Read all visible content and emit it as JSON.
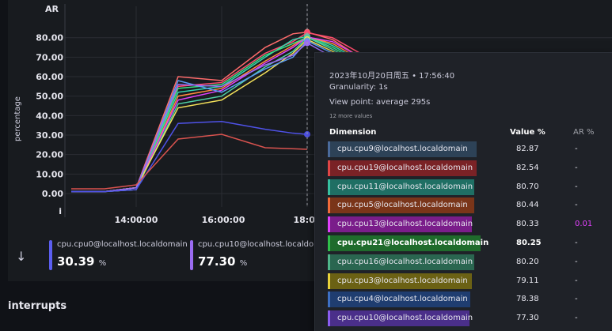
{
  "chart": {
    "y_axis_label": "percentage",
    "top_label": "AR",
    "bottom_label": "i",
    "y_ticks": [
      "80.00",
      "70.00",
      "60.00",
      "50.00",
      "40.00",
      "30.00",
      "20.00",
      "10.00",
      "0.00"
    ],
    "x_ticks": [
      "14:00:00",
      "16:00:00",
      "18:00"
    ]
  },
  "chart_data": {
    "type": "line",
    "ylabel": "percentage",
    "ylim": [
      0,
      88
    ],
    "x": [
      "13:00",
      "13:30",
      "14:00",
      "14:50",
      "15:50",
      "16:50",
      "17:40",
      "18:00",
      "18:40",
      "19:20"
    ],
    "series": [
      {
        "name": "cpu.cpu9@localhost.localdomain",
        "color": "#ff6b6b",
        "values": [
          1,
          1,
          3,
          60,
          58,
          75,
          82,
          82.87,
          79,
          70
        ]
      },
      {
        "name": "cpu.cpu19@localhost.localdomain",
        "color": "#ff4d6d",
        "values": [
          1,
          1,
          3,
          55,
          57,
          72,
          78,
          82.54,
          80,
          72
        ]
      },
      {
        "name": "cpu.cpu11@localhost.localdomain",
        "color": "#36d6b0",
        "values": [
          1,
          1,
          3,
          52,
          55,
          70,
          79,
          80.7,
          76,
          68
        ]
      },
      {
        "name": "cpu.cpu5@localhost.localdomain",
        "color": "#ff8a3d",
        "values": [
          1,
          1,
          2,
          50,
          54,
          68,
          76,
          80.44,
          77,
          69
        ]
      },
      {
        "name": "cpu.cpu13@localhost.localdomain",
        "color": "#e040fb",
        "values": [
          1,
          1,
          3,
          48,
          53,
          67,
          75,
          80.33,
          78,
          70
        ]
      },
      {
        "name": "cpu.cpu21@localhost.localdomain",
        "color": "#3ddc84",
        "values": [
          1,
          1,
          3,
          54,
          56,
          71,
          77,
          80.25,
          75,
          67
        ]
      },
      {
        "name": "cpu.cpu16@localhost.localdomain",
        "color": "#4fd1a5",
        "values": [
          1,
          1,
          2,
          46,
          50,
          65,
          73,
          80.2,
          74,
          66
        ]
      },
      {
        "name": "cpu.cpu3@localhost.localdomain",
        "color": "#f2e05a",
        "values": [
          1,
          1,
          3,
          44,
          48,
          62,
          72,
          79.11,
          73,
          65
        ]
      },
      {
        "name": "cpu.cpu4@localhost.localdomain",
        "color": "#5a9bf2",
        "values": [
          1,
          1,
          2,
          58,
          52,
          64,
          70,
          78.38,
          72,
          66
        ]
      },
      {
        "name": "cpu.cpu10@localhost.localdomain",
        "color": "#9b6cf2",
        "values": [
          1,
          1,
          3,
          56,
          55,
          66,
          71,
          77.3,
          70,
          64
        ]
      },
      {
        "name": "cpu.cpu0@localhost.localdomain",
        "color": "#4f52e8",
        "values": [
          1,
          1,
          2,
          36,
          37,
          33,
          31,
          30.39,
          0,
          0
        ]
      }
    ]
  },
  "stats": {
    "items": [
      {
        "name": "cpu.cpu0@localhost.localdomain",
        "value": "30.39",
        "unit": "%",
        "color": "#5b5ef0"
      },
      {
        "name": "cpu.cpu10@localhost.localdo",
        "value": "77.30",
        "unit": "%",
        "color": "#9b6cf2"
      }
    ]
  },
  "section": {
    "title": "interrupts"
  },
  "tooltip": {
    "date": "2023年10月20日周五 • 17:56:40",
    "granularity": "Granularity: 1s",
    "view_point": "View point: average 295s",
    "more": "12 more values",
    "headers": {
      "dimension": "Dimension",
      "value": "Value %",
      "ar": "AR %"
    },
    "rows": [
      {
        "name": "cpu.cpu9@localhost.localdomain",
        "value": "82.87",
        "ar": "-",
        "color": "#4a6a9a",
        "bg": "#2d4257"
      },
      {
        "name": "cpu.cpu19@localhost.localdomain",
        "value": "82.54",
        "ar": "-",
        "color": "#e04545",
        "bg": "#7a2226"
      },
      {
        "name": "cpu.cpu11@localhost.localdomain",
        "value": "80.70",
        "ar": "-",
        "color": "#36c0a0",
        "bg": "#1f6f64"
      },
      {
        "name": "cpu.cpu5@localhost.localdomain",
        "value": "80.44",
        "ar": "-",
        "color": "#f26b3a",
        "bg": "#7a3519"
      },
      {
        "name": "cpu.cpu13@localhost.localdomain",
        "value": "80.33",
        "ar": "0.01",
        "color": "#e040fb",
        "bg": "#7a1d8a"
      },
      {
        "name": "cpu.cpu21@localhost.localdomain",
        "value": "80.25",
        "ar": "-",
        "color": "#2fbf4a",
        "bg": "#1f6b2c",
        "bold": true
      },
      {
        "name": "cpu.cpu16@localhost.localdomain",
        "value": "80.20",
        "ar": "-",
        "color": "#4fb58a",
        "bg": "#2a6650"
      },
      {
        "name": "cpu.cpu3@localhost.localdomain",
        "value": "79.11",
        "ar": "-",
        "color": "#e8d23a",
        "bg": "#6b6114"
      },
      {
        "name": "cpu.cpu4@localhost.localdomain",
        "value": "78.38",
        "ar": "-",
        "color": "#3d6fc4",
        "bg": "#1f3d70"
      },
      {
        "name": "cpu.cpu10@localhost.localdomain",
        "value": "77.30",
        "ar": "-",
        "color": "#8a5cf0",
        "bg": "#4a2f8a"
      }
    ]
  }
}
